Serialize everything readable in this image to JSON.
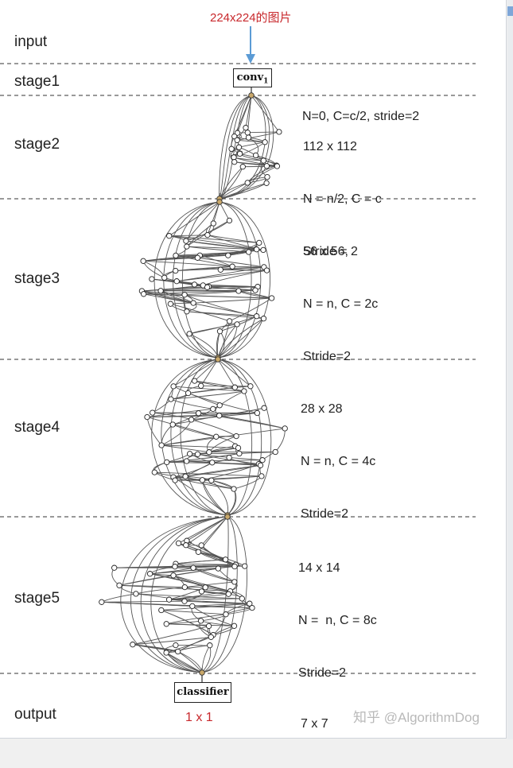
{
  "header": {
    "input_caption": "224x224的图片"
  },
  "stages": [
    {
      "label": "input"
    },
    {
      "label": "stage1"
    },
    {
      "label": "stage2"
    },
    {
      "label": "stage3"
    },
    {
      "label": "stage4"
    },
    {
      "label": "stage5"
    },
    {
      "label": "output"
    }
  ],
  "blocks": {
    "conv_label": "conv",
    "conv_subscript": "1",
    "classifier_label": "classifier"
  },
  "annotations": {
    "stage1": [
      "N=0, C=c/2, stride=2"
    ],
    "stage2": [
      "112 x 112",
      "N = n/2, C = c",
      "Stride = 2"
    ],
    "stage3": [
      "56 x 56,",
      "N = n, C = 2c",
      "Stride=2"
    ],
    "stage4": [
      "28 x 28",
      "N = n, C = 4c",
      "Stride=2"
    ],
    "stage5": [
      "14 x 14",
      "N =  n, C = 8c",
      "Stride=2"
    ],
    "output": [
      "7 x 7"
    ]
  },
  "footer": {
    "output_caption": "1 x 1",
    "watermark": "知乎 @AlgorithmDog"
  },
  "colors": {
    "caption": "#c8282c",
    "arrow": "#5b9bd5",
    "dashed": "#333333",
    "edge": "#555555"
  }
}
